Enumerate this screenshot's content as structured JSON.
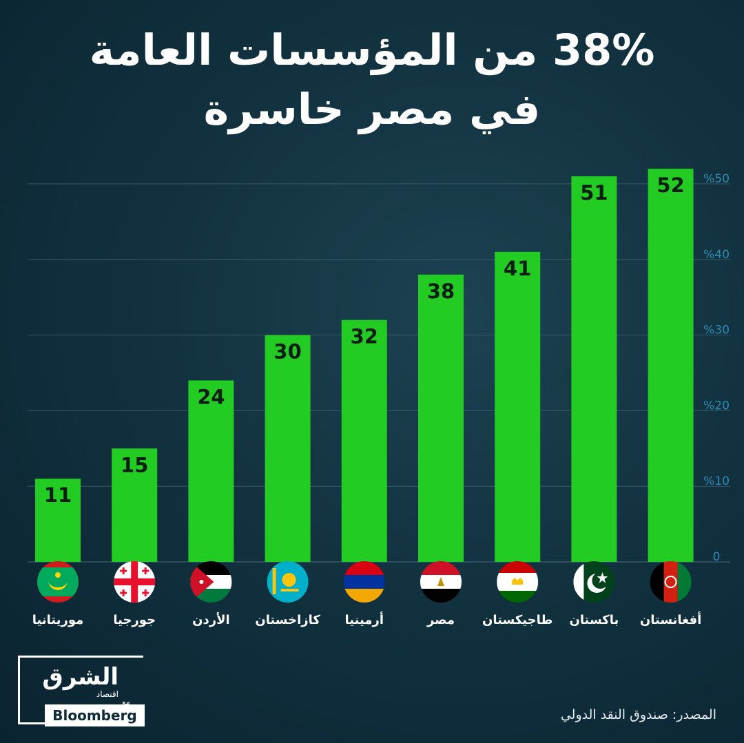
{
  "title_lines": [
    "38% من المؤسسات العامة",
    "في مصر خاسرة"
  ],
  "source": "المصدر: صندوق النقد الدولي",
  "logo": {
    "main": "الشرق",
    "sub": "اقتصاد",
    "with": "مع",
    "partner": "Bloomberg"
  },
  "colors": {
    "bar": "#22cc22",
    "grid": "#3b6374",
    "background": "#123240",
    "value_text": "#0a1e14"
  },
  "chart_data": {
    "type": "bar",
    "title": "38% من المؤسسات العامة في مصر خاسرة",
    "categories": [
      "موريتانيا",
      "جورجيا",
      "الأردن",
      "كازاخستان",
      "أرمينيا",
      "مصر",
      "طاجيكستان",
      "باكستان",
      "أفغانستان"
    ],
    "values": [
      11,
      15,
      24,
      30,
      32,
      38,
      41,
      51,
      52
    ],
    "flags": [
      "mauritania-flag",
      "georgia-flag",
      "jordan-flag",
      "kazakhstan-flag",
      "armenia-flag",
      "egypt-flag",
      "tajikistan-flag",
      "pakistan-flag",
      "afghanistan-flag"
    ],
    "y_ticks": [
      {
        "value": 0,
        "label": "0"
      },
      {
        "value": 10,
        "label": "%10"
      },
      {
        "value": 20,
        "label": "%20"
      },
      {
        "value": 30,
        "label": "%30"
      },
      {
        "value": 40,
        "label": "%40"
      },
      {
        "value": 50,
        "label": "%50"
      }
    ],
    "ylim": [
      0,
      53
    ],
    "grid": true,
    "y_axis_position": "right",
    "data_labels": "inside-top",
    "xlabel": "",
    "ylabel": ""
  }
}
